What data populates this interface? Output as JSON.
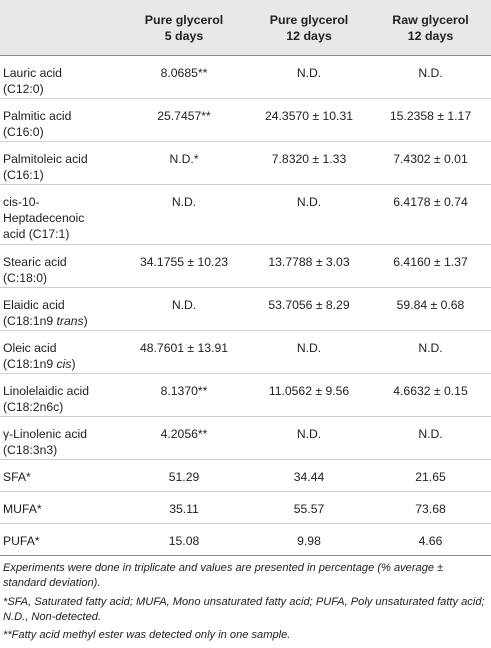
{
  "table": {
    "headers": [
      {
        "line1": "",
        "line2": ""
      },
      {
        "line1": "Pure glycerol",
        "line2": "5 days"
      },
      {
        "line1": "Pure glycerol",
        "line2": "12 days"
      },
      {
        "line1": "Raw glycerol",
        "line2": "12 days"
      }
    ],
    "rows": [
      {
        "name_line1": "Lauric acid",
        "name_pre": "(C12:0)",
        "name_ital": "",
        "values": [
          "8.0685**",
          "N.D.",
          "N.D."
        ]
      },
      {
        "name_line1": "Palmitic acid",
        "name_pre": "(C16:0)",
        "name_ital": "",
        "values": [
          "25.7457**",
          "24.3570 ± 10.31",
          "15.2358 ± 1.17"
        ]
      },
      {
        "name_line1": "Palmitoleic acid",
        "name_pre": "(C16:1)",
        "name_ital": "",
        "values": [
          "N.D.*",
          "7.8320 ± 1.33",
          "7.4302 ± 0.01"
        ]
      },
      {
        "name_line1": "cis-10-",
        "name_line2": "Heptadecenoic",
        "name_pre": "acid (C17:1)",
        "name_ital": "",
        "values": [
          "N.D.",
          "N.D.",
          "6.4178 ± 0.74"
        ]
      },
      {
        "name_line1": "Stearic acid",
        "name_pre": "(C:18:0)",
        "name_ital": "",
        "values": [
          "34.1755 ± 10.23",
          "13.7788 ± 3.03",
          "6.4160 ± 1.37"
        ]
      },
      {
        "name_line1": "Elaidic acid",
        "name_pre": "(C18:1n9 ",
        "name_ital": "trans",
        "name_post": ")",
        "values": [
          "N.D.",
          "53.7056 ± 8.29",
          "59.84 ± 0.68"
        ]
      },
      {
        "name_line1": "Oleic acid",
        "name_pre": "(C18:1n9 ",
        "name_ital": "cis",
        "name_post": ")",
        "values": [
          "48.7601 ± 13.91",
          "N.D.",
          "N.D."
        ]
      },
      {
        "name_line1": "Linolelaidic acid",
        "name_pre": "(C18:2n6c)",
        "name_ital": "",
        "values": [
          "8.1370**",
          "11.0562 ± 9.56",
          "4.6632 ± 0.15"
        ]
      },
      {
        "name_line1": "γ-Linolenic acid",
        "name_pre": "(C18:3n3)",
        "name_ital": "",
        "values": [
          "4.2056**",
          "N.D.",
          "N.D."
        ]
      },
      {
        "name_line1": "SFA*",
        "values": [
          "51.29",
          "34.44",
          "21.65"
        ]
      },
      {
        "name_line1": "MUFA*",
        "values": [
          "35.11",
          "55.57",
          "73.68"
        ]
      },
      {
        "name_line1": "PUFA*",
        "values": [
          "15.08",
          "9.98",
          "4.66"
        ]
      }
    ]
  },
  "notes": {
    "note1": "Experiments were done in triplicate and values are presented in percentage (% average ± standard deviation).",
    "note2": "*SFA, Saturated fatty acid; MUFA, Mono unsaturated fatty acid; PUFA, Poly unsaturated fatty acid; N.D., Non-detected.",
    "note3": "**Fatty acid methyl ester was detected only in one sample."
  }
}
